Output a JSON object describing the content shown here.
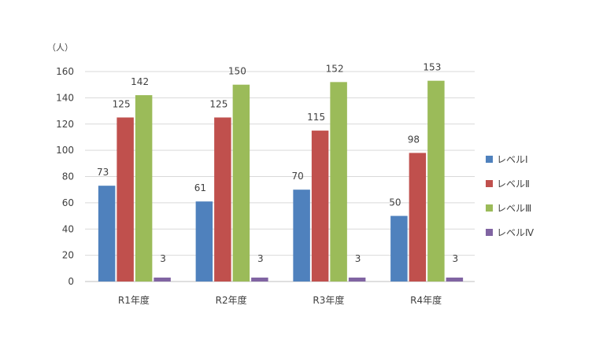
{
  "chart_data": {
    "type": "bar",
    "unit_label": "（人）",
    "categories": [
      "R1年度",
      "R2年度",
      "R3年度",
      "R4年度"
    ],
    "series": [
      {
        "name": "レベルⅠ",
        "color": "#4F81BD",
        "values": [
          73,
          61,
          70,
          50
        ]
      },
      {
        "name": "レベルⅡ",
        "color": "#C0504D",
        "values": [
          125,
          125,
          115,
          98
        ]
      },
      {
        "name": "レベルⅢ",
        "color": "#9BBB59",
        "values": [
          142,
          150,
          152,
          153
        ]
      },
      {
        "name": "レベルⅣ",
        "color": "#8064A2",
        "values": [
          3,
          3,
          3,
          3
        ]
      }
    ],
    "ylim": [
      0,
      160
    ],
    "yticks": [
      0,
      20,
      40,
      60,
      80,
      100,
      120,
      140,
      160
    ],
    "grid": true,
    "legend_position": "right"
  }
}
